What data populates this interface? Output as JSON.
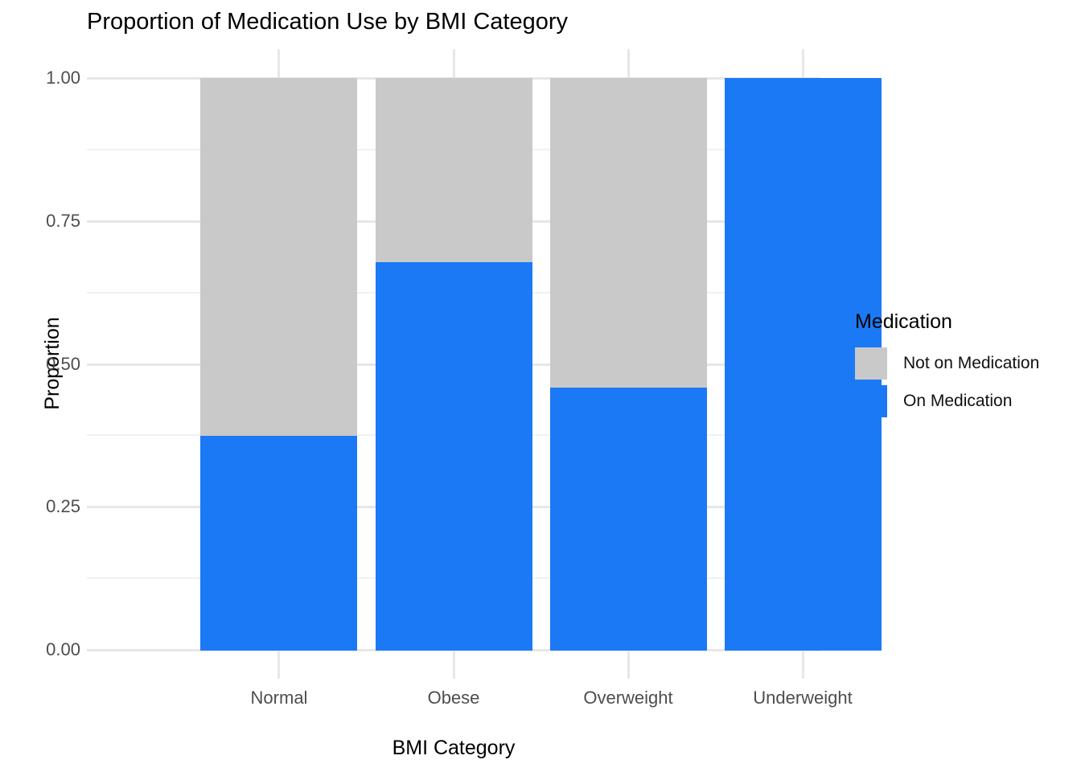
{
  "chart_data": {
    "type": "bar",
    "stacked": true,
    "normalized": true,
    "title": "Proportion of Medication Use by BMI Category",
    "xlabel": "BMI Category",
    "ylabel": "Proportion",
    "categories": [
      "Normal",
      "Obese",
      "Overweight",
      "Underweight"
    ],
    "series": [
      {
        "name": "On Medication",
        "color": "#1c79f5",
        "values": [
          0.375,
          0.68,
          0.46,
          1.0
        ]
      },
      {
        "name": "Not on Medication",
        "color": "#c9c9c9",
        "values": [
          0.625,
          0.32,
          0.54,
          0.0
        ]
      }
    ],
    "ylim": [
      0,
      1
    ],
    "yticks": [
      {
        "label": "0.00",
        "value": 0.0
      },
      {
        "label": "0.25",
        "value": 0.25
      },
      {
        "label": "0.50",
        "value": 0.5
      },
      {
        "label": "0.75",
        "value": 0.75
      },
      {
        "label": "1.00",
        "value": 1.0
      }
    ],
    "yticks_minor": [
      0.125,
      0.375,
      0.625,
      0.875
    ],
    "grid": true,
    "legend": {
      "title": "Medication",
      "position": "right",
      "items": [
        {
          "label": "Not on Medication",
          "color": "#c9c9c9"
        },
        {
          "label": "On Medication",
          "color": "#1c79f5"
        }
      ]
    },
    "colors": {
      "on_medication": "#1c79f5",
      "not_on_medication": "#c9c9c9",
      "grid_major": "#e7e7e7",
      "grid_minor": "#f1f1f1",
      "tick_label": "#4d4d4d",
      "text": "#000000",
      "background": "#ffffff"
    }
  }
}
